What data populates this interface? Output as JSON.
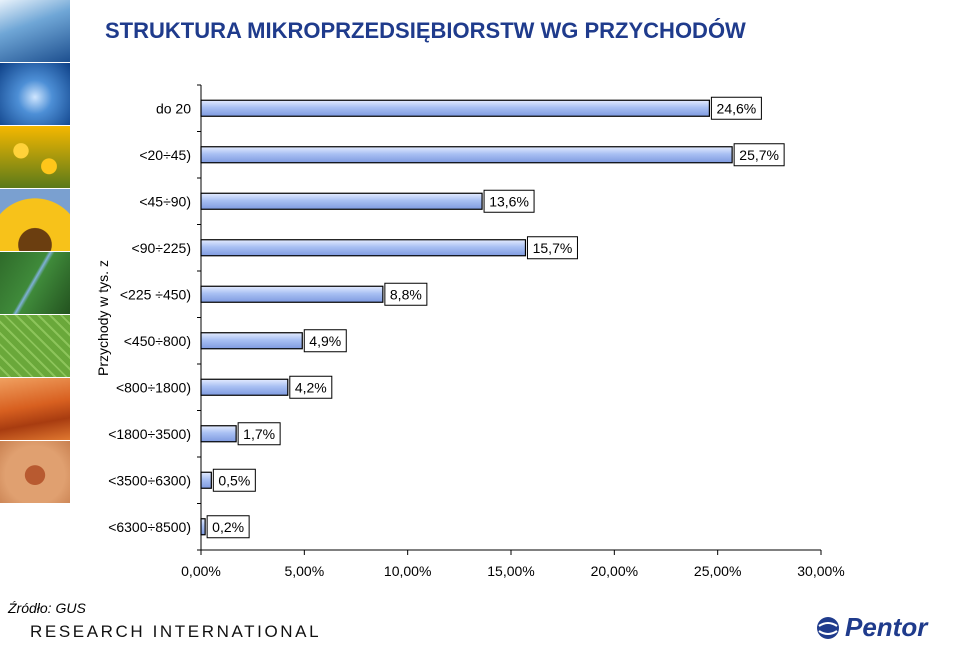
{
  "chart_data": {
    "type": "bar",
    "orientation": "horizontal",
    "title": "STRUKTURA MIKROPRZEDSIĘBIORSTW WG PRZYCHODÓW",
    "ylabel": "Przychody w tys. z",
    "xlabel": "",
    "categories": [
      "do 20",
      "<20÷45)",
      "<45÷90)",
      "<90÷225)",
      "<225 ÷450)",
      "<450÷800)",
      "<800÷1800)",
      "<1800÷3500)",
      "<3500÷6300)",
      "<6300÷8500)"
    ],
    "values": [
      24.6,
      25.7,
      13.6,
      15.7,
      8.8,
      4.9,
      4.2,
      1.7,
      0.5,
      0.2
    ],
    "data_labels": [
      "24,6%",
      "25,7%",
      "13,6%",
      "15,7%",
      "8,8%",
      "4,9%",
      "4,2%",
      "1,7%",
      "0,5%",
      "0,2%"
    ],
    "xlim": [
      0,
      30
    ],
    "xticks": [
      0,
      5,
      10,
      15,
      20,
      25,
      30
    ],
    "xtick_labels": [
      "0,00%",
      "5,00%",
      "10,00%",
      "15,00%",
      "20,00%",
      "25,00%",
      "30,00%"
    ],
    "grid": false,
    "legend": "none",
    "bar_color": "#9fb8f0"
  },
  "footer": {
    "source": "Źródło: GUS",
    "research": "RESEARCH INTERNATIONAL",
    "logo": "Pentor"
  }
}
